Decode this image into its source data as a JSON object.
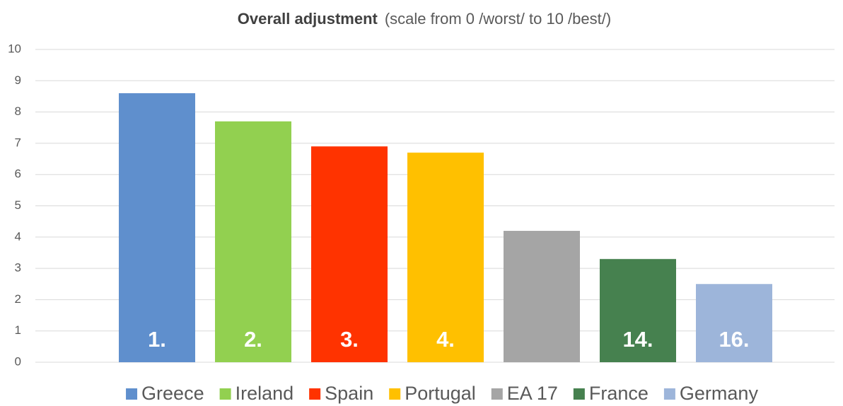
{
  "chart_data": {
    "type": "bar",
    "title": "Overall adjustment",
    "subtitle": "(scale from 0 /worst/ to 10 /best/)",
    "categories": [
      "Greece",
      "Ireland",
      "Spain",
      "Portugal",
      "EA 17",
      "France",
      "Germany"
    ],
    "values": [
      8.6,
      7.7,
      6.9,
      6.7,
      4.2,
      3.3,
      2.5
    ],
    "colors": [
      "#5f8fcd",
      "#92d050",
      "#ff3300",
      "#ffc000",
      "#a5a5a5",
      "#46814f",
      "#9db5da"
    ],
    "bar_labels": [
      "1.",
      "2.",
      "3.",
      "4.",
      null,
      "14.",
      "16."
    ],
    "ylim": [
      0,
      10
    ],
    "yticks": [
      0,
      1,
      2,
      3,
      4,
      5,
      6,
      7,
      8,
      9,
      10
    ],
    "grid": true,
    "legend": "bottom"
  }
}
